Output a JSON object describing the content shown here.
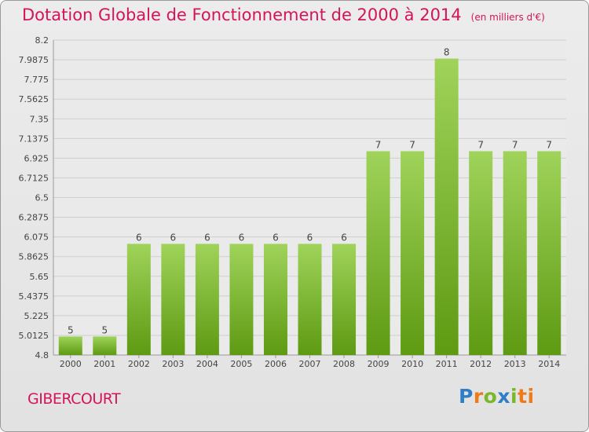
{
  "header": {
    "title": "Dotation Globale de Fonctionnement de 2000 à 2014",
    "subtitle": "(en milliers d'€)"
  },
  "footer": {
    "commune": "GIBERCOURT",
    "logo_text": "Proxiti"
  },
  "colors": {
    "title": "#d4145a",
    "bar_top": "#9fd35a",
    "bar_bottom": "#5e9a12",
    "grid": "#cfcfcf"
  },
  "chart_data": {
    "type": "bar",
    "title": "Dotation Globale de Fonctionnement de 2000 à 2014",
    "subtitle": "(en milliers d'€)",
    "categories": [
      "2000",
      "2001",
      "2002",
      "2003",
      "2004",
      "2005",
      "2006",
      "2007",
      "2008",
      "2009",
      "2010",
      "2011",
      "2012",
      "2013",
      "2014"
    ],
    "values": [
      5,
      5,
      6,
      6,
      6,
      6,
      6,
      6,
      6,
      7,
      7,
      8,
      7,
      7,
      7
    ],
    "data_labels": [
      "5",
      "5",
      "6",
      "6",
      "6",
      "6",
      "6",
      "6",
      "6",
      "7",
      "7",
      "8",
      "7",
      "7",
      "7"
    ],
    "yticks": [
      "4.8",
      "5.0125",
      "5.225",
      "5.4375",
      "5.65",
      "5.8625",
      "6.075",
      "6.2875",
      "6.5",
      "6.7125",
      "6.925",
      "7.1375",
      "7.35",
      "7.5625",
      "7.775",
      "7.9875",
      "8.2"
    ],
    "ylim": [
      4.8,
      8.2
    ],
    "grid": true,
    "xlabel": "",
    "ylabel": ""
  }
}
